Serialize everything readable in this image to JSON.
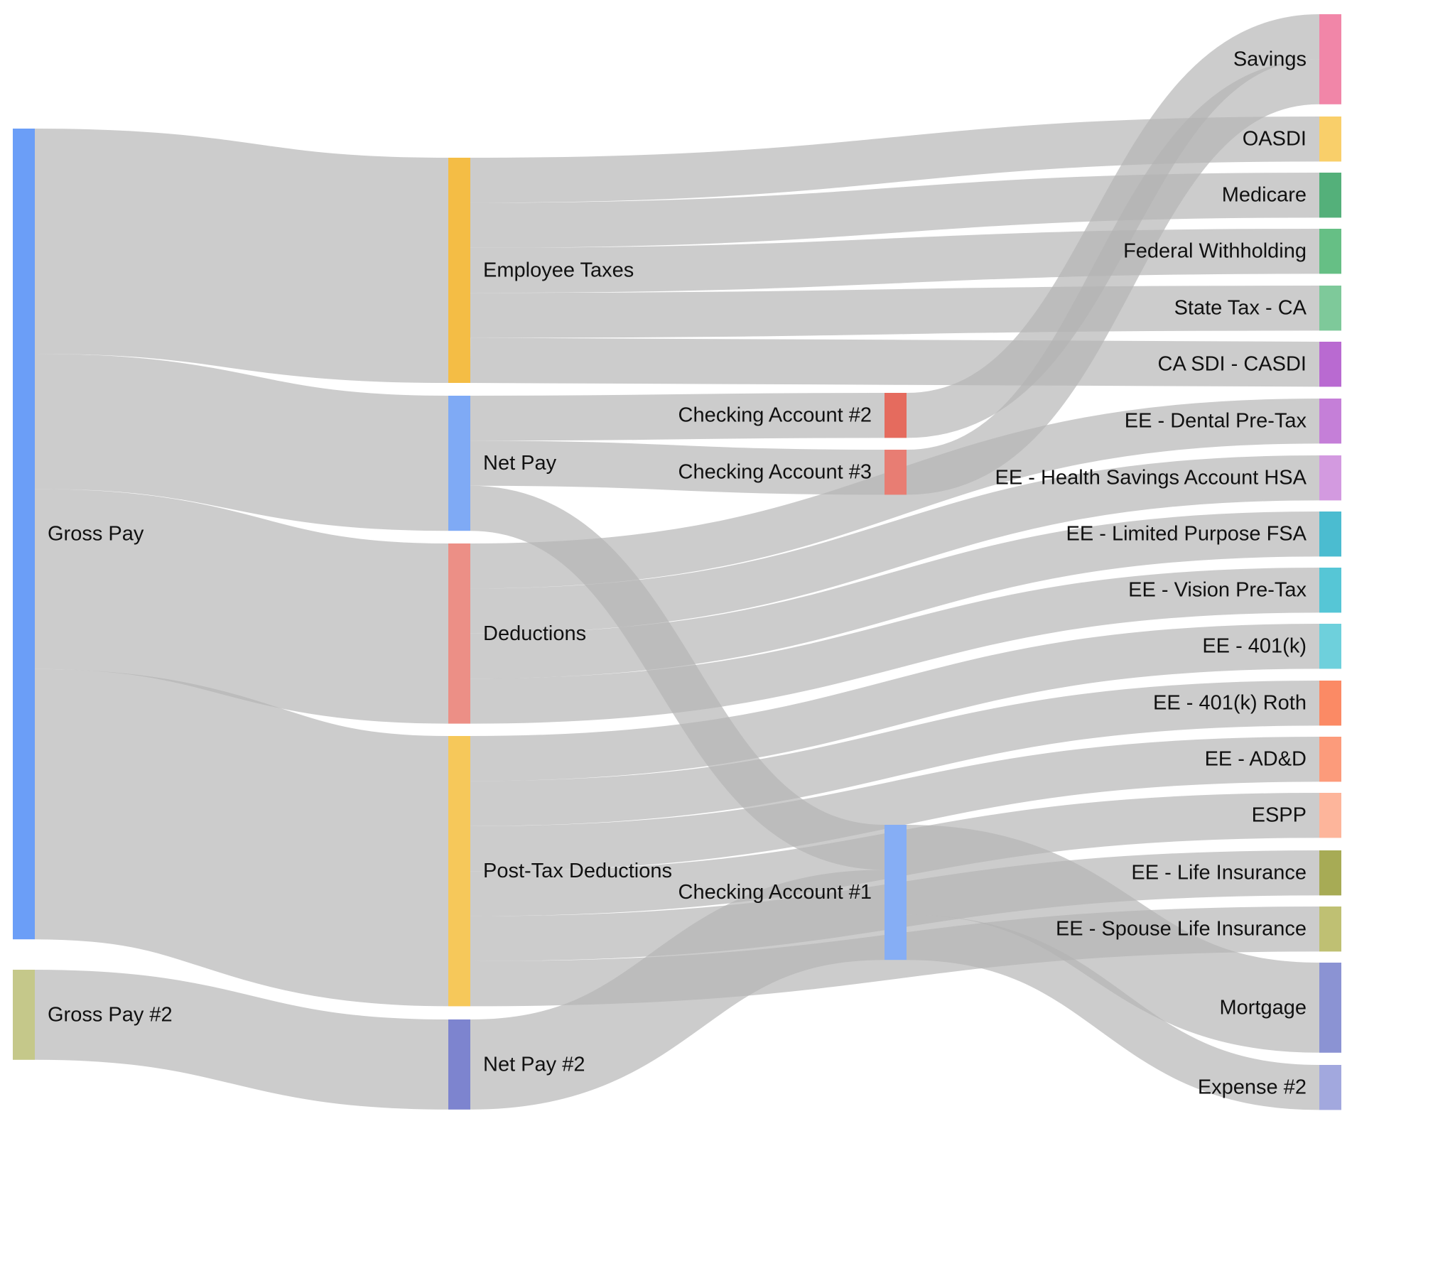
{
  "chart_data": {
    "type": "sankey",
    "title": "",
    "link_color": "#b4b4b4",
    "nodes": [
      {
        "name": "Gross Pay",
        "color": "#6b9ef7"
      },
      {
        "name": "Gross Pay #2",
        "color": "#c5c88a"
      },
      {
        "name": "Employee Taxes",
        "color": "#f4bd45"
      },
      {
        "name": "Net Pay",
        "color": "#7faaf5"
      },
      {
        "name": "Deductions",
        "color": "#ec8f86"
      },
      {
        "name": "Post-Tax Deductions",
        "color": "#f6c85a"
      },
      {
        "name": "Net Pay #2",
        "color": "#7d84cf"
      },
      {
        "name": "Checking Account #2",
        "color": "#e56b5e"
      },
      {
        "name": "Checking Account #3",
        "color": "#e87d73"
      },
      {
        "name": "Checking Account #1",
        "color": "#86aef5"
      },
      {
        "name": "Savings",
        "color": "#f186a8"
      },
      {
        "name": "OASDI",
        "color": "#f9cf6a"
      },
      {
        "name": "Medicare",
        "color": "#54b07a"
      },
      {
        "name": "Federal Withholding",
        "color": "#66bf85"
      },
      {
        "name": "State Tax - CA",
        "color": "#7ec99a"
      },
      {
        "name": "CA SDI - CASDI",
        "color": "#b96ad1"
      },
      {
        "name": "EE - Dental Pre-Tax",
        "color": "#c57fd8"
      },
      {
        "name": "EE - Health Savings Account HSA",
        "color": "#d39ae0"
      },
      {
        "name": "EE - Limited Purpose FSA",
        "color": "#4bbcd0"
      },
      {
        "name": "EE - Vision Pre-Tax",
        "color": "#56c6d6"
      },
      {
        "name": "EE - 401(k)",
        "color": "#6ed0dc"
      },
      {
        "name": "EE - 401(k) Roth",
        "color": "#fb8a65"
      },
      {
        "name": "EE - AD&D",
        "color": "#fc9b7b"
      },
      {
        "name": "ESPP",
        "color": "#fdb59b"
      },
      {
        "name": "EE - Life Insurance",
        "color": "#a7ab55"
      },
      {
        "name": "EE - Spouse Life Insurance",
        "color": "#bfc073"
      },
      {
        "name": "Mortgage",
        "color": "#8b93d3"
      },
      {
        "name": "Expense #2",
        "color": "#a2a8de"
      }
    ],
    "links": [
      {
        "source": "Gross Pay",
        "target": "Employee Taxes",
        "value": 5
      },
      {
        "source": "Gross Pay",
        "target": "Net Pay",
        "value": 3
      },
      {
        "source": "Gross Pay",
        "target": "Deductions",
        "value": 4
      },
      {
        "source": "Gross Pay",
        "target": "Post-Tax Deductions",
        "value": 6
      },
      {
        "source": "Gross Pay #2",
        "target": "Net Pay #2",
        "value": 2
      },
      {
        "source": "Employee Taxes",
        "target": "OASDI",
        "value": 1
      },
      {
        "source": "Employee Taxes",
        "target": "Medicare",
        "value": 1
      },
      {
        "source": "Employee Taxes",
        "target": "Federal Withholding",
        "value": 1
      },
      {
        "source": "Employee Taxes",
        "target": "State Tax - CA",
        "value": 1
      },
      {
        "source": "Employee Taxes",
        "target": "CA SDI - CASDI",
        "value": 1
      },
      {
        "source": "Net Pay",
        "target": "Checking Account #2",
        "value": 1
      },
      {
        "source": "Net Pay",
        "target": "Checking Account #3",
        "value": 1
      },
      {
        "source": "Net Pay",
        "target": "Checking Account #1",
        "value": 1
      },
      {
        "source": "Deductions",
        "target": "EE - Dental Pre-Tax",
        "value": 1
      },
      {
        "source": "Deductions",
        "target": "EE - Health Savings Account HSA",
        "value": 1
      },
      {
        "source": "Deductions",
        "target": "EE - Limited Purpose FSA",
        "value": 1
      },
      {
        "source": "Deductions",
        "target": "EE - Vision Pre-Tax",
        "value": 1
      },
      {
        "source": "Post-Tax Deductions",
        "target": "EE - 401(k)",
        "value": 1
      },
      {
        "source": "Post-Tax Deductions",
        "target": "EE - 401(k) Roth",
        "value": 1
      },
      {
        "source": "Post-Tax Deductions",
        "target": "EE - AD&D",
        "value": 1
      },
      {
        "source": "Post-Tax Deductions",
        "target": "ESPP",
        "value": 1
      },
      {
        "source": "Post-Tax Deductions",
        "target": "EE - Life Insurance",
        "value": 1
      },
      {
        "source": "Post-Tax Deductions",
        "target": "EE - Spouse Life Insurance",
        "value": 1
      },
      {
        "source": "Net Pay #2",
        "target": "Checking Account #1",
        "value": 2
      },
      {
        "source": "Checking Account #2",
        "target": "Savings",
        "value": 1
      },
      {
        "source": "Checking Account #3",
        "target": "Savings",
        "value": 1
      },
      {
        "source": "Checking Account #1",
        "target": "Mortgage",
        "value": 2
      },
      {
        "source": "Checking Account #1",
        "target": "Expense #2",
        "value": 1
      }
    ]
  }
}
